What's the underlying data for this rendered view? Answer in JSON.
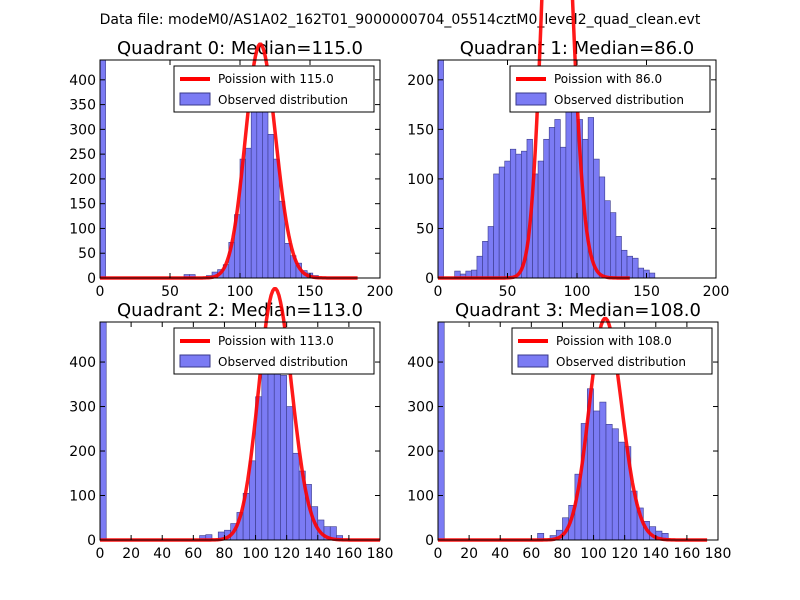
{
  "figure_title": "Data file: modeM0/AS1A02_162T01_9000000704_05514cztM0_level2_quad_clean.evt",
  "colors": {
    "bar_fill": "#7b7bf4",
    "bar_edge": "#3a3a8a",
    "curve": "#ff0000",
    "frame": "#000000"
  },
  "chart_data": [
    {
      "type": "bar",
      "title": "Quadrant 0: Median=115.0",
      "median": 115.0,
      "legend": {
        "position": "top-right",
        "curve_label": "Poission with 115.0",
        "bars_label": "Observed distribution"
      },
      "xlim": [
        0,
        200
      ],
      "ylim": [
        0,
        440
      ],
      "xticks": [
        0,
        50,
        100,
        150,
        200
      ],
      "yticks": [
        0,
        50,
        100,
        150,
        200,
        250,
        300,
        350,
        400
      ],
      "bin_width": 4,
      "bin_starts": [
        0,
        60,
        64,
        76,
        80,
        84,
        88,
        92,
        96,
        100,
        104,
        108,
        112,
        116,
        120,
        124,
        128,
        132,
        136,
        140,
        144,
        148,
        152
      ],
      "counts": [
        440,
        7,
        7,
        5,
        12,
        17,
        27,
        72,
        128,
        240,
        262,
        360,
        390,
        345,
        290,
        240,
        155,
        70,
        45,
        30,
        15,
        10,
        5
      ]
    },
    {
      "type": "bar",
      "title": "Quadrant 1: Median=86.0",
      "median": 86.0,
      "legend": {
        "position": "top-right",
        "curve_label": "Poission with 86.0",
        "bars_label": "Observed distribution"
      },
      "xlim": [
        0,
        200
      ],
      "ylim": [
        0,
        220
      ],
      "xticks": [
        0,
        50,
        100,
        150,
        200
      ],
      "yticks": [
        0,
        50,
        100,
        150,
        200
      ],
      "bin_width": 4,
      "bin_starts": [
        0,
        12,
        16,
        20,
        24,
        28,
        32,
        36,
        40,
        44,
        48,
        52,
        56,
        60,
        64,
        68,
        72,
        76,
        80,
        84,
        88,
        92,
        96,
        100,
        104,
        108,
        112,
        116,
        120,
        124,
        128,
        132,
        136,
        140,
        144,
        148,
        152
      ],
      "counts": [
        220,
        7,
        4,
        7,
        8,
        22,
        37,
        52,
        105,
        112,
        118,
        130,
        125,
        128,
        140,
        105,
        118,
        140,
        152,
        160,
        132,
        168,
        178,
        160,
        140,
        162,
        120,
        102,
        78,
        66,
        42,
        28,
        22,
        20,
        10,
        8,
        5
      ]
    },
    {
      "type": "bar",
      "title": "Quadrant 2: Median=113.0",
      "median": 113.0,
      "legend": {
        "position": "top-right",
        "curve_label": "Poission with 113.0",
        "bars_label": "Observed distribution"
      },
      "xlim": [
        0,
        180
      ],
      "ylim": [
        0,
        490
      ],
      "xticks": [
        0,
        20,
        40,
        60,
        80,
        100,
        120,
        140,
        160,
        180
      ],
      "yticks": [
        0,
        100,
        200,
        300,
        400
      ],
      "bin_width": 4,
      "bin_starts": [
        0,
        64,
        68,
        76,
        80,
        84,
        88,
        92,
        96,
        100,
        104,
        108,
        112,
        116,
        120,
        124,
        128,
        132,
        136,
        140,
        144,
        148,
        152
      ],
      "counts": [
        490,
        10,
        12,
        18,
        22,
        37,
        62,
        105,
        178,
        322,
        375,
        420,
        380,
        370,
        300,
        195,
        155,
        125,
        75,
        45,
        30,
        30,
        10
      ]
    },
    {
      "type": "bar",
      "title": "Quadrant 3: Median=108.0",
      "median": 108.0,
      "legend": {
        "position": "top-right",
        "curve_label": "Poission with 108.0",
        "bars_label": "Observed distribution"
      },
      "xlim": [
        0,
        180
      ],
      "ylim": [
        0,
        490
      ],
      "xticks": [
        0,
        20,
        40,
        60,
        80,
        100,
        120,
        140,
        160,
        180
      ],
      "yticks": [
        0,
        100,
        200,
        300,
        400
      ],
      "bin_width": 4,
      "bin_starts": [
        0,
        64,
        72,
        76,
        80,
        84,
        88,
        92,
        96,
        100,
        104,
        108,
        112,
        116,
        120,
        124,
        128,
        132,
        136,
        140,
        144
      ],
      "counts": [
        490,
        15,
        10,
        22,
        50,
        78,
        148,
        262,
        340,
        290,
        310,
        260,
        250,
        220,
        210,
        110,
        72,
        42,
        30,
        20,
        15
      ]
    }
  ]
}
